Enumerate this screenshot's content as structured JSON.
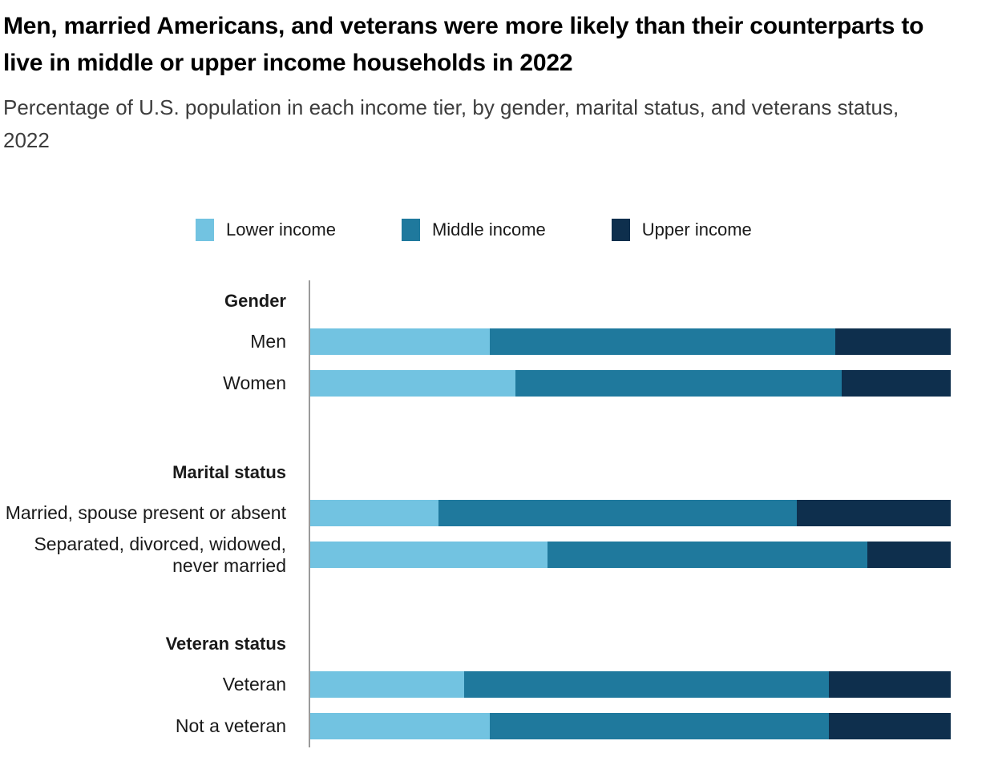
{
  "header": {
    "title": "Men, married Americans, and veterans were more likely than their counterparts to live in middle or upper income households in 2022",
    "subtitle": "Percentage of U.S. population in each income tier, by gender, marital status, and veterans status, 2022"
  },
  "legend": [
    {
      "label": "Lower income",
      "color": "#72c3e1"
    },
    {
      "label": "Middle income",
      "color": "#1f799d"
    },
    {
      "label": "Upper income",
      "color": "#0e2f4d"
    }
  ],
  "colors": {
    "lower_income": "#72c3e1",
    "middle_income": "#1f799d",
    "upper_income": "#0e2f4d",
    "axis_line": "#9a9a9a",
    "title_text": "#000000",
    "subtitle_text": "#3d3d3d"
  },
  "chart_data": {
    "type": "bar",
    "orientation": "horizontal",
    "stacked": true,
    "title": "Men, married Americans, and veterans were more likely than their counterparts to live in middle or upper income households in 2022",
    "subtitle": "Percentage of U.S. population in each income tier, by gender, marital status, and veterans status, 2022",
    "unit": "%",
    "xlim": [
      0,
      100
    ],
    "grid": false,
    "legend_position": "top",
    "series_names": [
      "Lower income",
      "Middle income",
      "Upper income"
    ],
    "series_colors": [
      "#72c3e1",
      "#1f799d",
      "#0e2f4d"
    ],
    "groups": [
      {
        "header": "Gender",
        "rows": [
          {
            "label": "Men",
            "values": [
              28,
              54,
              18
            ]
          },
          {
            "label": "Women",
            "values": [
              32,
              51,
              17
            ]
          }
        ]
      },
      {
        "header": "Marital status",
        "rows": [
          {
            "label": "Married, spouse present or absent",
            "values": [
              20,
              56,
              24
            ]
          },
          {
            "label": "Separated, divorced, widowed, never married",
            "values": [
              37,
              50,
              13
            ]
          }
        ]
      },
      {
        "header": "Veteran status",
        "rows": [
          {
            "label": "Veteran",
            "values": [
              24,
              57,
              19
            ]
          },
          {
            "label": "Not a veteran",
            "values": [
              28,
              53,
              19
            ]
          }
        ]
      }
    ]
  }
}
